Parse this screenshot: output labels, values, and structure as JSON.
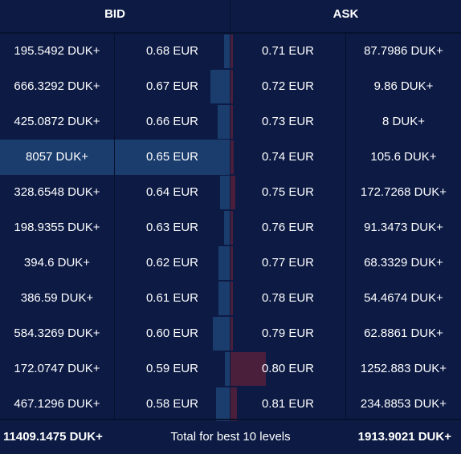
{
  "header": {
    "bid_label": "BID",
    "ask_label": "ASK"
  },
  "max_volume": 8057,
  "rows": [
    {
      "bid_qty": "195.5492 DUK+",
      "bid_price": "0.68 EUR",
      "ask_price": "0.71 EUR",
      "ask_qty": "87.7986 DUK+",
      "bid_volume": 195.5492,
      "ask_volume": 87.7986
    },
    {
      "bid_qty": "666.3292 DUK+",
      "bid_price": "0.67 EUR",
      "ask_price": "0.72 EUR",
      "ask_qty": "9.86 DUK+",
      "bid_volume": 666.3292,
      "ask_volume": 9.86
    },
    {
      "bid_qty": "425.0872 DUK+",
      "bid_price": "0.66 EUR",
      "ask_price": "0.73 EUR",
      "ask_qty": "8 DUK+",
      "bid_volume": 425.0872,
      "ask_volume": 8
    },
    {
      "bid_qty": "8057 DUK+",
      "bid_price": "0.65 EUR",
      "ask_price": "0.74 EUR",
      "ask_qty": "105.6 DUK+",
      "bid_volume": 8057,
      "ask_volume": 105.6,
      "highlight": true
    },
    {
      "bid_qty": "328.6548 DUK+",
      "bid_price": "0.64 EUR",
      "ask_price": "0.75 EUR",
      "ask_qty": "172.7268 DUK+",
      "bid_volume": 328.6548,
      "ask_volume": 172.7268
    },
    {
      "bid_qty": "198.9355 DUK+",
      "bid_price": "0.63 EUR",
      "ask_price": "0.76 EUR",
      "ask_qty": "91.3473 DUK+",
      "bid_volume": 198.9355,
      "ask_volume": 91.3473
    },
    {
      "bid_qty": "394.6 DUK+",
      "bid_price": "0.62 EUR",
      "ask_price": "0.77 EUR",
      "ask_qty": "68.3329 DUK+",
      "bid_volume": 394.6,
      "ask_volume": 68.3329
    },
    {
      "bid_qty": "386.59 DUK+",
      "bid_price": "0.61 EUR",
      "ask_price": "0.78 EUR",
      "ask_qty": "54.4674 DUK+",
      "bid_volume": 386.59,
      "ask_volume": 54.4674
    },
    {
      "bid_qty": "584.3269 DUK+",
      "bid_price": "0.60 EUR",
      "ask_price": "0.79 EUR",
      "ask_qty": "62.8861 DUK+",
      "bid_volume": 584.3269,
      "ask_volume": 62.8861
    },
    {
      "bid_qty": "172.0747 DUK+",
      "bid_price": "0.59 EUR",
      "ask_price": "0.80 EUR",
      "ask_qty": "1252.883 DUK+",
      "bid_volume": 172.0747,
      "ask_volume": 1252.883
    },
    {
      "bid_qty": "467.1296 DUK+",
      "bid_price": "0.58 EUR",
      "ask_price": "0.81 EUR",
      "ask_qty": "234.8853 DUK+",
      "bid_volume": 467.1296,
      "ask_volume": 234.8853
    }
  ],
  "footer": {
    "bid_total": "11409.1475 DUK+",
    "label": "Total for best 10 levels",
    "ask_total": "1913.9021 DUK+"
  },
  "colors": {
    "background": "#0c1a44",
    "bid_bar": "#1b3d6e",
    "ask_bar": "#4a1f3c",
    "text": "#ffffff"
  }
}
